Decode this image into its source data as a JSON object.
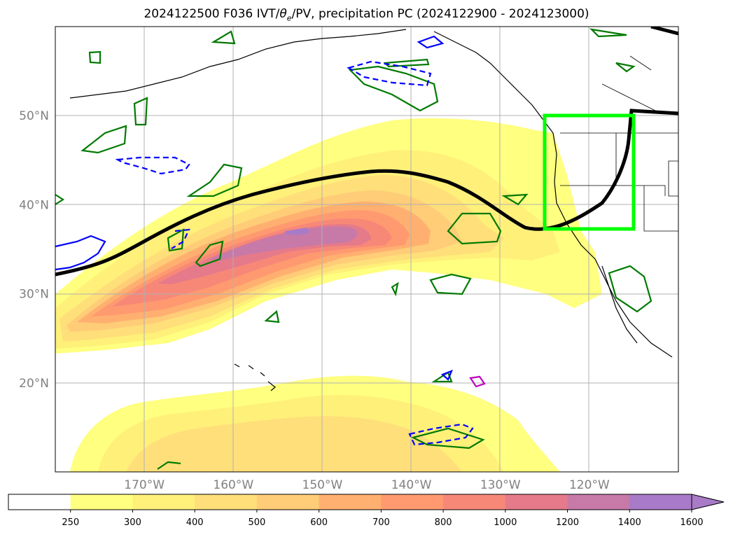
{
  "title": {
    "prefix": "2024122500 F036 IVT/",
    "theta": "θ",
    "theta_sub": "e",
    "suffix": "/PV, precipitation PC (2024122900 - 2024123000)"
  },
  "map": {
    "lat_labels": [
      {
        "lat": 50,
        "label": "50°N"
      },
      {
        "lat": 40,
        "label": "40°N"
      },
      {
        "lat": 30,
        "label": "30°N"
      },
      {
        "lat": 20,
        "label": "20°N"
      }
    ],
    "lon_labels": [
      {
        "lon": -170,
        "label": "170°W"
      },
      {
        "lon": -160,
        "label": "160°W"
      },
      {
        "lon": -150,
        "label": "150°W"
      },
      {
        "lon": -140,
        "label": "140°W"
      },
      {
        "lon": -130,
        "label": "130°W"
      },
      {
        "lon": -120,
        "label": "120°W"
      }
    ],
    "extent": {
      "lon_min": -180,
      "lon_max": -110,
      "lat_min": 10,
      "lat_max": 60
    },
    "highlight_box": {
      "lon_min": -125,
      "lon_max": -115,
      "lat_min": 37,
      "lat_max": 50,
      "color": "#00ff00"
    }
  },
  "colorbar": {
    "levels": [
      "250",
      "300",
      "400",
      "500",
      "600",
      "700",
      "800",
      "1000",
      "1200",
      "1400",
      "1600"
    ],
    "colors": [
      "#ffffff",
      "#ffff80",
      "#fff07a",
      "#ffdf7a",
      "#ffcc78",
      "#ffb070",
      "#ff9a70",
      "#f78878",
      "#e57a8a",
      "#c77aa8",
      "#a87ac8"
    ]
  },
  "colors": {
    "jet": "#000000",
    "pv_positive": "#007a00",
    "pv_negative": "#0000ff",
    "coast": "#000000"
  }
}
